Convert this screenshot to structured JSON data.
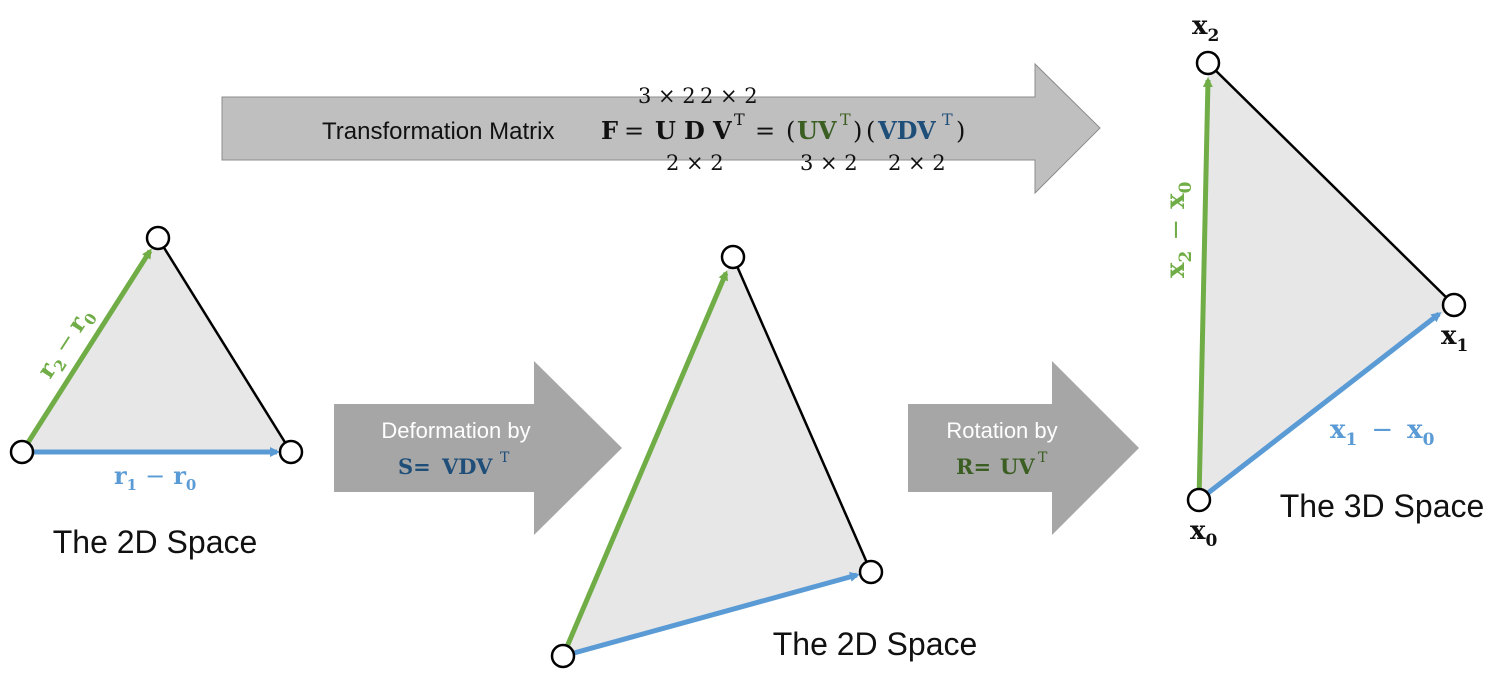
{
  "colors": {
    "green": "#70AD47",
    "blue": "#5B9BD5",
    "dark_green": "#3B5E22",
    "dark_blue": "#1F4E79",
    "fill": "#E7E7E7",
    "big_arrow": "#BFBFBF",
    "small_arrow": "#A6A6A6"
  },
  "top_arrow": {
    "prefix": "Transformation Matrix",
    "F": "F",
    "eq1": "=",
    "U": "U",
    "D": "D",
    "V": "V",
    "T": "T",
    "eq2": "=",
    "open1": "(",
    "UV": "UV",
    "close1": ")",
    "open2": "(",
    "VDV": "VDV",
    "close2": ")",
    "dim_above_u": "3 × 2",
    "dim_above_d": "2 × 2",
    "dim_below_v": "2 × 2",
    "dim_below_uv": "3 × 2",
    "dim_below_vdv": "2 × 2"
  },
  "deform_arrow": {
    "line1": "Deformation by",
    "S": "S=",
    "VDV": "VDV",
    "T": "T"
  },
  "rotate_arrow": {
    "line1": "Rotation by",
    "R": "R=",
    "UV": "UV",
    "T": "T"
  },
  "left_triangle": {
    "label_green_r2": "r",
    "sub_2": "2",
    "minus": "−",
    "label_green_r0": "r",
    "sub_0": "0",
    "label_blue_r1": "r",
    "sub_1": "1",
    "label_blue_r0": "r",
    "sub_0b": "0",
    "caption": "The 2D Space"
  },
  "middle_triangle": {
    "caption": "The 2D Space"
  },
  "right_triangle": {
    "x": "x",
    "sub_0": "0",
    "sub_1": "1",
    "sub_2": "2",
    "minus": "−",
    "caption": "The 3D Space"
  }
}
